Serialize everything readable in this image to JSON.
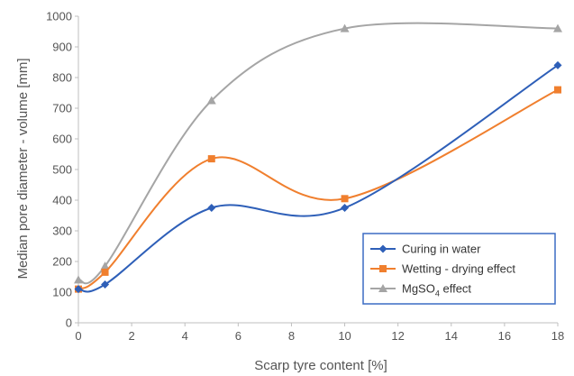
{
  "chart_data": {
    "type": "line",
    "title": "",
    "xlabel": "Scarp tyre content [%]",
    "ylabel": "Median pore diameter - volume [mm]",
    "xlim": [
      0,
      18
    ],
    "ylim": [
      0,
      1000
    ],
    "xticks": [
      0,
      2,
      4,
      6,
      8,
      10,
      12,
      14,
      16,
      18
    ],
    "yticks": [
      0,
      100,
      200,
      300,
      400,
      500,
      600,
      700,
      800,
      900,
      1000
    ],
    "grid": false,
    "smooth": true,
    "legend_position": "bottom-right",
    "x": [
      0,
      1,
      5,
      10,
      18
    ],
    "series": [
      {
        "name": "Curing in water",
        "values": [
          110,
          125,
          375,
          375,
          840
        ],
        "color": "#2E5FB8",
        "marker": "diamond"
      },
      {
        "name": "Wetting - drying effect",
        "values": [
          110,
          165,
          535,
          405,
          760
        ],
        "color": "#F07F2E",
        "marker": "square"
      },
      {
        "name": "MgSO4 effect",
        "label_main": "MgSO",
        "label_sub": "4",
        "label_tail": " effect",
        "values": [
          140,
          185,
          725,
          960,
          960
        ],
        "color": "#A5A5A5",
        "marker": "triangle"
      }
    ]
  }
}
